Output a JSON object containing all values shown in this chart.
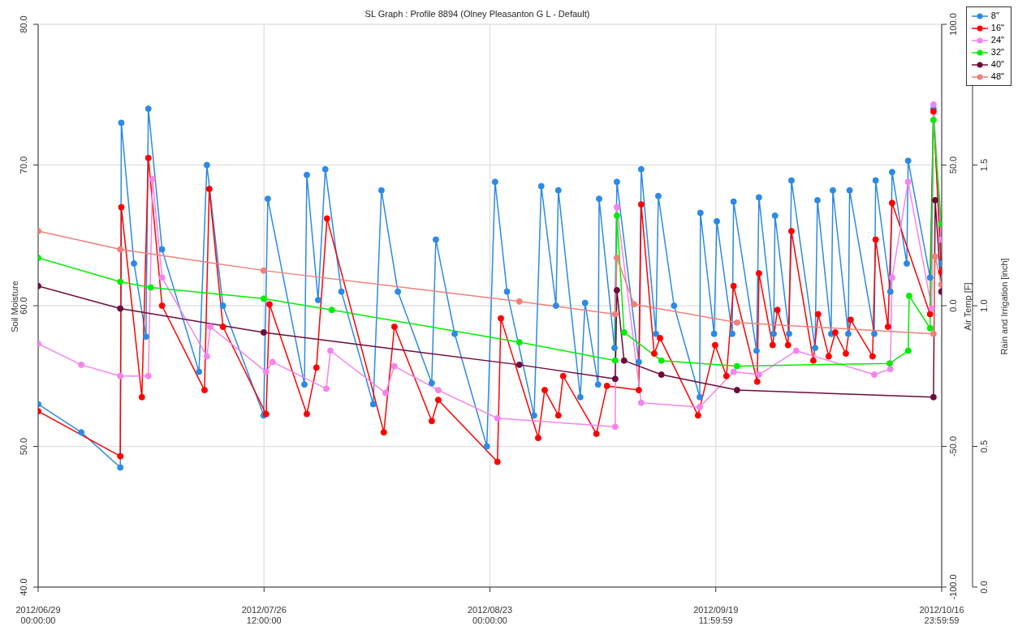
{
  "chart_data": {
    "type": "line",
    "title": "SL Graph : Profile 8894 (Olney Pleasanton G L - Default)",
    "ylabel": "Soil Moisture",
    "y2label": "Air Temp [F]",
    "y3label": "Rain and Irrigation [inch]",
    "xlim": [
      "2012-06-29T00:00",
      "2012-10-16T23:59"
    ],
    "xticks": [
      {
        "value": "2012-06-29T00:00",
        "label": "2012/06/29\n00:00:00"
      },
      {
        "value": "2012-07-26T12:00",
        "label": "2012/07/26\n12:00:00"
      },
      {
        "value": "2012-08-23T00:00",
        "label": "2012/08/23\n00:00:00"
      },
      {
        "value": "2012-09-19T11:59",
        "label": "2012/09/19\n11:59:59"
      },
      {
        "value": "2012-10-16T23:59",
        "label": "2012/10/16\n23:59:59"
      }
    ],
    "ylim": [
      40,
      80
    ],
    "yticks": [
      {
        "value": 40,
        "label": "40.0"
      },
      {
        "value": 50,
        "label": "50.0"
      },
      {
        "value": 60,
        "label": "60.0"
      },
      {
        "value": 70,
        "label": "70.0"
      },
      {
        "value": 80,
        "label": "80.0"
      }
    ],
    "y2lim": [
      -100,
      100
    ],
    "y2ticks": [
      {
        "value": -100,
        "label": "-100.0"
      },
      {
        "value": -50,
        "label": "-50.0"
      },
      {
        "value": 0,
        "label": "0.0"
      },
      {
        "value": 50,
        "label": "50.0"
      },
      {
        "value": 100,
        "label": "100.0"
      }
    ],
    "y3lim": [
      0,
      2
    ],
    "y3ticks": [
      {
        "value": 0,
        "label": "0.0"
      },
      {
        "value": 0.5,
        "label": "0.5"
      },
      {
        "value": 1,
        "label": "1.0"
      },
      {
        "value": 1.5,
        "label": "1.5"
      },
      {
        "value": 2,
        "label": null
      }
    ],
    "grid": true,
    "legend": "top right",
    "marker": "circle",
    "line_style": "solid",
    "series": [
      {
        "name": "8\"",
        "color": "#2b8ae6",
        "x": [
          "2012-06-29T00:00",
          "2012-07-04T06:00",
          "2012-07-09T00:00",
          "2012-07-09T03:00",
          "2012-07-10T16:00",
          "2012-07-12T03:00",
          "2012-07-12T10:00",
          "2012-07-14T02:00",
          "2012-07-18T14:00",
          "2012-07-19T13:00",
          "2012-07-21T12:00",
          "2012-07-26T11:00",
          "2012-07-26T23:00",
          "2012-07-31T10:00",
          "2012-07-31T17:00",
          "2012-08-02T02:00",
          "2012-08-02T23:00",
          "2012-08-04T22:00",
          "2012-08-08T19:00",
          "2012-08-09T19:00",
          "2012-08-11T19:00",
          "2012-08-15T22:00",
          "2012-08-16T10:00",
          "2012-08-18T17:00",
          "2012-08-22T15:00",
          "2012-08-23T15:00",
          "2012-08-25T02:00",
          "2012-08-28T09:00",
          "2012-08-29T06:00",
          "2012-08-31T01:00",
          "2012-08-31T08:00",
          "2012-09-03T00:00",
          "2012-09-03T14:00",
          "2012-09-05T04:00",
          "2012-09-05T07:00",
          "2012-09-07T04:00",
          "2012-09-07T11:00",
          "2012-09-10T03:00",
          "2012-09-10T10:00",
          "2012-09-12T05:00",
          "2012-09-12T12:00",
          "2012-09-14T10:00",
          "2012-09-17T13:00",
          "2012-09-17T15:00",
          "2012-09-19T07:00",
          "2012-09-19T15:00",
          "2012-09-21T12:00",
          "2012-09-21T16:00",
          "2012-09-24T11:00",
          "2012-09-24T18:00",
          "2012-09-26T13:00",
          "2012-09-26T17:00",
          "2012-09-28T10:00",
          "2012-09-28T17:00",
          "2012-10-01T14:00",
          "2012-10-01T21:00",
          "2012-10-03T13:00",
          "2012-10-03T18:00",
          "2012-10-05T15:00",
          "2012-10-05T19:00",
          "2012-10-08T19:00",
          "2012-10-08T23:00",
          "2012-10-10T18:00",
          "2012-10-10T23:00",
          "2012-10-12T18:00",
          "2012-10-12T22:00",
          "2012-10-15T14:00",
          "2012-10-16T00:00",
          "2012-10-16T23:00"
        ],
        "values": [
          53.0,
          51.0,
          48.5,
          73.0,
          63.0,
          57.8,
          74.0,
          64.0,
          55.3,
          70.0,
          60.0,
          52.2,
          67.6,
          54.4,
          69.3,
          60.4,
          69.7,
          61.0,
          53.0,
          68.2,
          61.0,
          54.5,
          64.7,
          58.0,
          50.0,
          68.8,
          61.0,
          52.2,
          68.5,
          60.0,
          68.2,
          53.5,
          60.2,
          54.4,
          67.6,
          57.0,
          68.8,
          56.0,
          69.7,
          58.0,
          67.8,
          60.0,
          53.5,
          66.6,
          58.0,
          66.0,
          58.0,
          67.4,
          56.8,
          67.7,
          58.0,
          66.4,
          58.0,
          68.9,
          57.0,
          67.5,
          58.0,
          68.2,
          58.0,
          68.2,
          58.0,
          68.9,
          61.0,
          69.5,
          63.0,
          70.3,
          62.0,
          74.0,
          63.0
        ]
      },
      {
        "name": "16\"",
        "color": "#ff0000",
        "x": [
          "2012-06-29T00:00",
          "2012-07-09T00:00",
          "2012-07-09T03:00",
          "2012-07-11T15:00",
          "2012-07-12T10:00",
          "2012-07-14T02:00",
          "2012-07-19T06:00",
          "2012-07-19T20:00",
          "2012-07-21T12:00",
          "2012-07-26T18:00",
          "2012-07-27T04:00",
          "2012-07-31T17:00",
          "2012-08-01T21:00",
          "2012-08-03T04:00",
          "2012-08-10T02:00",
          "2012-08-11T09:00",
          "2012-08-15T22:00",
          "2012-08-16T17:00",
          "2012-08-23T22:00",
          "2012-08-24T08:00",
          "2012-08-28T21:00",
          "2012-08-29T16:00",
          "2012-08-31T08:00",
          "2012-08-31T22:00",
          "2012-09-04T23:00",
          "2012-09-06T06:00",
          "2012-09-10T03:00",
          "2012-09-10T10:00",
          "2012-09-12T00:00",
          "2012-09-12T17:00",
          "2012-09-17T08:00",
          "2012-09-19T10:00",
          "2012-09-20T19:00",
          "2012-09-21T16:00",
          "2012-09-24T13:00",
          "2012-09-24T18:00",
          "2012-09-26T10:00",
          "2012-09-27T00:00",
          "2012-09-28T07:00",
          "2012-09-28T17:00",
          "2012-10-01T09:00",
          "2012-10-01T23:00",
          "2012-10-03T06:00",
          "2012-10-04T01:00",
          "2012-10-05T08:00",
          "2012-10-05T22:00",
          "2012-10-08T14:00",
          "2012-10-08T23:00",
          "2012-10-10T11:00",
          "2012-10-10T23:00",
          "2012-10-15T14:00",
          "2012-10-16T00:00",
          "2012-10-16T23:00"
        ],
        "values": [
          52.5,
          49.3,
          67.0,
          53.5,
          70.5,
          60.0,
          54.0,
          68.3,
          58.5,
          52.3,
          60.1,
          52.3,
          55.6,
          66.2,
          51.0,
          58.5,
          51.8,
          53.3,
          48.9,
          59.1,
          50.6,
          54.0,
          52.2,
          55.0,
          50.9,
          54.3,
          54.0,
          67.2,
          56.6,
          57.7,
          52.2,
          57.2,
          55.0,
          61.4,
          54.6,
          62.3,
          57.2,
          59.7,
          57.2,
          65.3,
          56.1,
          59.4,
          56.4,
          58.1,
          56.6,
          59.0,
          56.4,
          64.7,
          58.5,
          67.3,
          59.4,
          73.8,
          62.4
        ]
      },
      {
        "name": "24\"",
        "color": "#f583ee",
        "x": [
          "2012-06-29T00:00",
          "2012-07-04T06:00",
          "2012-07-09T00:00",
          "2012-07-12T10:00",
          "2012-07-12T22:00",
          "2012-07-14T02:00",
          "2012-07-19T13:00",
          "2012-07-19T23:00",
          "2012-07-26T18:00",
          "2012-07-27T13:00",
          "2012-08-03T02:00",
          "2012-08-03T14:00",
          "2012-08-10T07:00",
          "2012-08-11T09:00",
          "2012-08-16T17:00",
          "2012-08-23T22:00",
          "2012-09-07T06:00",
          "2012-09-07T11:00",
          "2012-09-10T10:00",
          "2012-09-17T13:00",
          "2012-09-21T16:00",
          "2012-09-24T18:00",
          "2012-09-29T07:00",
          "2012-10-08T19:00",
          "2012-10-10T18:00",
          "2012-10-10T23:00",
          "2012-10-12T22:00",
          "2012-10-15T19:00",
          "2012-10-16T00:00",
          "2012-10-16T23:00"
        ],
        "values": [
          57.3,
          55.8,
          55.0,
          55.0,
          69.0,
          62.0,
          56.4,
          58.5,
          55.3,
          56.0,
          54.1,
          56.8,
          53.8,
          55.7,
          54.0,
          52.0,
          51.4,
          67.0,
          53.1,
          52.8,
          55.3,
          55.1,
          56.8,
          55.1,
          55.5,
          62.0,
          68.8,
          59.8,
          74.3,
          64.7
        ]
      },
      {
        "name": "32\"",
        "color": "#00ee00",
        "x": [
          "2012-06-29T00:00",
          "2012-07-09T00:00",
          "2012-07-12T17:00",
          "2012-07-26T11:00",
          "2012-08-03T18:00",
          "2012-08-26T14:00",
          "2012-09-07T06:00",
          "2012-09-07T11:00",
          "2012-09-08T08:00",
          "2012-09-12T21:00",
          "2012-09-22T02:00",
          "2012-10-10T16:00",
          "2012-10-12T22:00",
          "2012-10-13T01:00",
          "2012-10-15T14:00",
          "2012-10-16T00:00",
          "2012-10-16T23:00"
        ],
        "values": [
          63.4,
          61.7,
          61.3,
          60.5,
          59.7,
          57.4,
          56.1,
          66.4,
          58.1,
          56.1,
          55.7,
          55.9,
          56.8,
          60.7,
          58.4,
          73.2,
          65.8
        ]
      },
      {
        "name": "40\"",
        "color": "#6e0a3c",
        "x": [
          "2012-06-29T00:00",
          "2012-07-09T00:00",
          "2012-07-26T11:00",
          "2012-08-26T14:00",
          "2012-09-07T06:00",
          "2012-09-07T11:00",
          "2012-09-08T08:00",
          "2012-09-12T21:00",
          "2012-09-22T02:00",
          "2012-10-16T00:00",
          "2012-10-16T05:00",
          "2012-10-16T23:00"
        ],
        "values": [
          61.4,
          59.8,
          58.1,
          55.8,
          54.8,
          61.1,
          56.1,
          55.1,
          54.0,
          53.5,
          67.5,
          61.0
        ]
      },
      {
        "name": "48\"",
        "color": "#f08078",
        "x": [
          "2012-06-29T00:00",
          "2012-07-09T00:00",
          "2012-07-26T11:00",
          "2012-08-26T14:00",
          "2012-09-07T06:00",
          "2012-09-07T11:00",
          "2012-09-09T13:00",
          "2012-09-22T02:00",
          "2012-10-16T00:00",
          "2012-10-16T05:00",
          "2012-10-16T23:00"
        ],
        "values": [
          65.3,
          64.0,
          62.5,
          60.3,
          59.4,
          63.4,
          60.1,
          58.8,
          58.0,
          63.5,
          61.5
        ]
      }
    ]
  }
}
